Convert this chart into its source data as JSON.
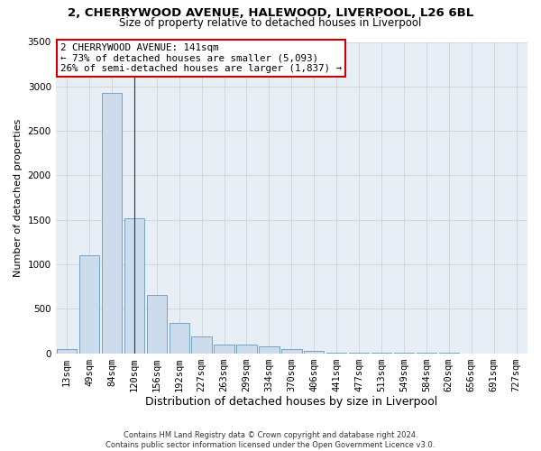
{
  "title_line1": "2, CHERRYWOOD AVENUE, HALEWOOD, LIVERPOOL, L26 6BL",
  "title_line2": "Size of property relative to detached houses in Liverpool",
  "xlabel": "Distribution of detached houses by size in Liverpool",
  "ylabel": "Number of detached properties",
  "bar_labels": [
    "13sqm",
    "49sqm",
    "84sqm",
    "120sqm",
    "156sqm",
    "192sqm",
    "227sqm",
    "263sqm",
    "299sqm",
    "334sqm",
    "370sqm",
    "406sqm",
    "441sqm",
    "477sqm",
    "513sqm",
    "549sqm",
    "584sqm",
    "620sqm",
    "656sqm",
    "691sqm",
    "727sqm"
  ],
  "bar_values": [
    45,
    1100,
    2930,
    1520,
    650,
    340,
    185,
    100,
    100,
    75,
    50,
    25,
    10,
    5,
    3,
    2,
    2,
    1,
    0,
    0,
    0
  ],
  "bar_color": "#cddcec",
  "bar_edge_color": "#6699bb",
  "property_line_x": 3,
  "annotation_line1": "2 CHERRYWOOD AVENUE: 141sqm",
  "annotation_line2": "← 73% of detached houses are smaller (5,093)",
  "annotation_line3": "26% of semi-detached houses are larger (1,837) →",
  "annotation_box_color": "#ffffff",
  "annotation_border_color": "#cc0000",
  "ylim": [
    0,
    3500
  ],
  "yticks": [
    0,
    500,
    1000,
    1500,
    2000,
    2500,
    3000,
    3500
  ],
  "grid_color": "#cccccc",
  "background_color": "#e8eef5",
  "title1_fontsize": 9.5,
  "title2_fontsize": 8.5,
  "ylabel_fontsize": 8,
  "xlabel_fontsize": 9,
  "tick_fontsize": 7.5,
  "footnote": "Contains HM Land Registry data © Crown copyright and database right 2024.\nContains public sector information licensed under the Open Government Licence v3.0."
}
